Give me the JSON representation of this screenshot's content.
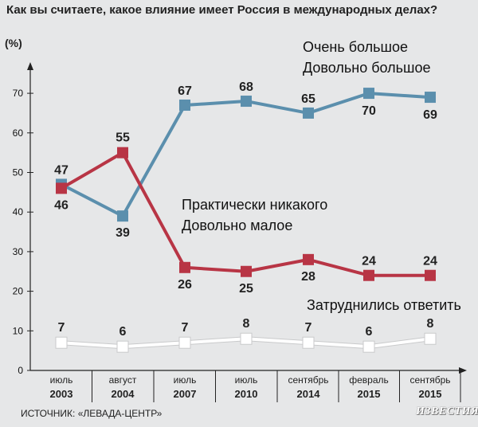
{
  "chart_data": {
    "type": "line",
    "title": "Как вы считаете, какое влияние имеет Россия в международных делах?",
    "ylabel": "(%)",
    "ylim": [
      0,
      75
    ],
    "yticks": [
      0,
      10,
      20,
      30,
      40,
      50,
      60,
      70
    ],
    "categories": [
      {
        "line1": "июль",
        "line2": "2003"
      },
      {
        "line1": "август",
        "line2": "2004"
      },
      {
        "line1": "июль",
        "line2": "2007"
      },
      {
        "line1": "июль",
        "line2": "2010"
      },
      {
        "line1": "сентябрь",
        "line2": "2014"
      },
      {
        "line1": "февраль",
        "line2": "2015"
      },
      {
        "line1": "сентябрь",
        "line2": "2015"
      }
    ],
    "series": [
      {
        "label_lines": [
          "Очень большое",
          "Довольно большое"
        ],
        "color": "#5b8fad",
        "values": [
          47,
          39,
          67,
          68,
          65,
          70,
          69
        ]
      },
      {
        "label_lines": [
          "Практически никакого",
          "Довольно малое"
        ],
        "color": "#b83545",
        "values": [
          46,
          55,
          26,
          25,
          28,
          24,
          24
        ]
      },
      {
        "label_lines": [
          "Затруднились ответить"
        ],
        "color": "#ffffff",
        "values": [
          7,
          6,
          7,
          8,
          7,
          6,
          8
        ]
      }
    ],
    "grid": false
  },
  "source": "ИСТОЧНИК: «ЛЕВАДА-ЦЕНТР»",
  "logo": "ИЗВЕСТИЯ"
}
